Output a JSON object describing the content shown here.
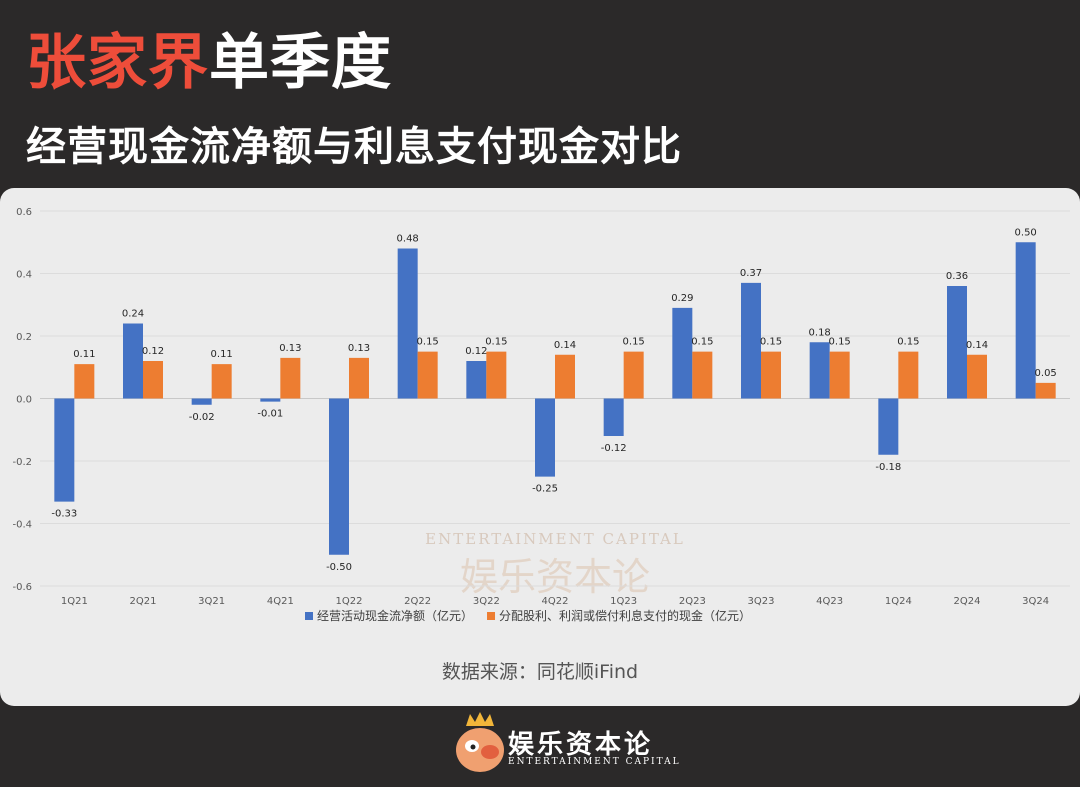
{
  "header": {
    "title_red": "张家界",
    "title_white": "单季度",
    "subtitle": "经营现金流净额与利息支付现金对比"
  },
  "chart_data": {
    "type": "bar",
    "categories": [
      "1Q21",
      "2Q21",
      "3Q21",
      "4Q21",
      "1Q22",
      "2Q22",
      "3Q22",
      "4Q22",
      "1Q23",
      "2Q23",
      "3Q23",
      "4Q23",
      "1Q24",
      "2Q24",
      "3Q24"
    ],
    "series": [
      {
        "name": "经营活动现金流净额（亿元）",
        "color": "#4472c4",
        "values": [
          -0.33,
          0.24,
          -0.02,
          -0.01,
          -0.5,
          0.48,
          0.12,
          -0.25,
          -0.12,
          0.29,
          0.37,
          0.18,
          -0.18,
          0.36,
          0.5
        ],
        "labels": [
          "-0.33",
          "0.24",
          "-0.02",
          "-0.01",
          "-0.50",
          "0.48",
          "0.12",
          "-0.25",
          "-0.12",
          "0.29",
          "0.37",
          "0.18",
          "-0.18",
          "0.36",
          "0.50"
        ]
      },
      {
        "name": "分配股利、利润或偿付利息支付的现金（亿元）",
        "color": "#ed7d31",
        "values": [
          0.11,
          0.12,
          0.11,
          0.13,
          0.13,
          0.15,
          0.15,
          0.14,
          0.15,
          0.15,
          0.15,
          0.15,
          0.15,
          0.14,
          0.05
        ],
        "labels": [
          "0.11",
          "0.12",
          "0.11",
          "0.13",
          "0.13",
          "0.15",
          "0.15",
          "0.14",
          "0.15",
          "0.15",
          "0.15",
          "0.15",
          "0.15",
          "0.14",
          "0.05"
        ]
      }
    ],
    "yticks": [
      "0.6",
      "0.4",
      "0.2",
      "0.0",
      "-0.2",
      "-0.4",
      "-0.6"
    ],
    "ylim": [
      -0.6,
      0.6
    ],
    "grid": true,
    "legend": "bottom"
  },
  "source": "数据来源：同花顺iFind",
  "watermark": {
    "en": "ENTERTAINMENT CAPITAL",
    "cn": "娱乐资本论"
  },
  "footer": {
    "name": "娱乐资本论",
    "sub": "ENTERTAINMENT CAPITAL"
  }
}
